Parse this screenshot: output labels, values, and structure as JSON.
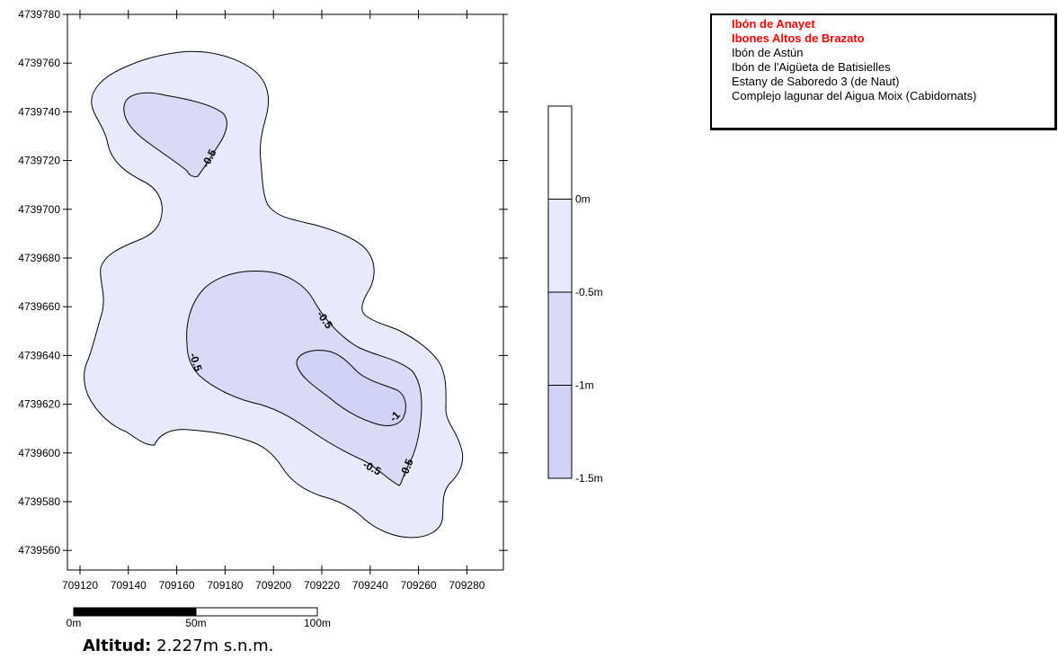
{
  "map": {
    "y_ticks": [
      "4739780",
      "4739760",
      "4739740",
      "4739720",
      "4739700",
      "4739680",
      "4739660",
      "4739640",
      "4739620",
      "4739600",
      "4739580",
      "4739560"
    ],
    "x_ticks": [
      "709120",
      "709140",
      "709160",
      "709180",
      "709200",
      "709220",
      "709240",
      "709260",
      "709280"
    ],
    "contour_labels": [
      "-0.5",
      "-0.5",
      "-0.5",
      "-1",
      "-0.5",
      "-0.5"
    ],
    "fill_colors": {
      "level_0": "#e9e9fb",
      "level_minus_0_5": "#dadaf7",
      "level_minus_1": "#d1d1f5"
    }
  },
  "color_scale": {
    "labels": [
      "0m",
      "-0.5m",
      "-1m",
      "-1.5m"
    ],
    "colors": [
      "#ffffff",
      "#e9e9fb",
      "#dadaf7",
      "#d1d1f5"
    ]
  },
  "scale_bar": {
    "labels": [
      "0m",
      "50m",
      "100m"
    ]
  },
  "lake_list": {
    "items": [
      {
        "label": "Ibón de Anayet",
        "highlight": true
      },
      {
        "label": "Ibones Altos de Brazato",
        "highlight": true
      },
      {
        "label": "Ibón de Astún",
        "highlight": false
      },
      {
        "label": "Ibón de l'Aigüeta de Batisielles",
        "highlight": false
      },
      {
        "label": "Estany de Saboredo 3 (de Naut)",
        "highlight": false
      },
      {
        "label": "Complejo lagunar del Aigua Moix (Cabidornats)",
        "highlight": false
      }
    ],
    "highlight_color": "#ff0000"
  },
  "altitude": {
    "label": "Altitud:",
    "value": "2.227m s.n.m."
  }
}
